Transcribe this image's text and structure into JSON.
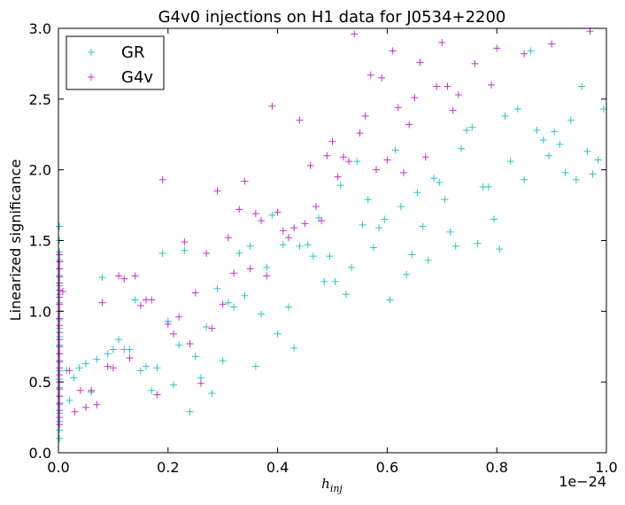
{
  "chart_data": {
    "type": "scatter",
    "title": "G4v0 injections on H1 data for J0534+2200",
    "xlabel": "h",
    "xlabel_sub": "inj",
    "ylabel": "Linearized significance",
    "x_offset_text": "1e−24",
    "xlim": [
      0.0,
      1.0
    ],
    "ylim": [
      0.0,
      3.0
    ],
    "x_ticks": [
      "0.0",
      "0.2",
      "0.4",
      "0.6",
      "0.8",
      "1.0"
    ],
    "y_ticks": [
      "0.0",
      "0.5",
      "1.0",
      "1.5",
      "2.0",
      "2.5",
      "3.0"
    ],
    "legend_position": "top-left",
    "series": [
      {
        "name": "GR",
        "color": "#29c6c6",
        "marker": "+",
        "points": [
          [
            0.015,
            0.58
          ],
          [
            0.02,
            0.37
          ],
          [
            0.028,
            0.53
          ],
          [
            0.038,
            0.6
          ],
          [
            0.05,
            0.63
          ],
          [
            0.06,
            0.43
          ],
          [
            0.07,
            0.66
          ],
          [
            0.08,
            1.24
          ],
          [
            0.09,
            0.7
          ],
          [
            0.1,
            0.73
          ],
          [
            0.11,
            0.8
          ],
          [
            0.12,
            0.73
          ],
          [
            0.13,
            0.73
          ],
          [
            0.14,
            1.08
          ],
          [
            0.15,
            0.58
          ],
          [
            0.16,
            0.61
          ],
          [
            0.17,
            0.44
          ],
          [
            0.18,
            0.6
          ],
          [
            0.19,
            1.41
          ],
          [
            0.2,
            0.93
          ],
          [
            0.21,
            0.48
          ],
          [
            0.22,
            0.76
          ],
          [
            0.23,
            1.43
          ],
          [
            0.24,
            0.29
          ],
          [
            0.25,
            0.68
          ],
          [
            0.26,
            0.53
          ],
          [
            0.27,
            0.89
          ],
          [
            0.28,
            0.42
          ],
          [
            0.29,
            1.16
          ],
          [
            0.3,
            0.65
          ],
          [
            0.31,
            1.06
          ],
          [
            0.32,
            1.03
          ],
          [
            0.33,
            1.41
          ],
          [
            0.34,
            1.11
          ],
          [
            0.35,
            1.46
          ],
          [
            0.36,
            0.61
          ],
          [
            0.37,
            0.98
          ],
          [
            0.38,
            1.31
          ],
          [
            0.39,
            1.68
          ],
          [
            0.4,
            0.84
          ],
          [
            0.41,
            1.47
          ],
          [
            0.42,
            1.03
          ],
          [
            0.43,
            0.74
          ],
          [
            0.44,
            1.46
          ],
          [
            0.455,
            1.47
          ],
          [
            0.465,
            1.39
          ],
          [
            0.475,
            1.66
          ],
          [
            0.485,
            1.21
          ],
          [
            0.495,
            1.39
          ],
          [
            0.505,
            1.21
          ],
          [
            0.515,
            1.89
          ],
          [
            0.525,
            1.12
          ],
          [
            0.535,
            1.31
          ],
          [
            0.545,
            2.06
          ],
          [
            0.555,
            1.61
          ],
          [
            0.565,
            1.79
          ],
          [
            0.575,
            1.45
          ],
          [
            0.585,
            1.59
          ],
          [
            0.595,
            1.65
          ],
          [
            0.605,
            1.08
          ],
          [
            0.615,
            2.14
          ],
          [
            0.625,
            1.74
          ],
          [
            0.635,
            1.26
          ],
          [
            0.645,
            1.4
          ],
          [
            0.655,
            1.84
          ],
          [
            0.665,
            1.6
          ],
          [
            0.675,
            1.36
          ],
          [
            0.685,
            1.94
          ],
          [
            0.695,
            1.91
          ],
          [
            0.705,
            1.79
          ],
          [
            0.715,
            1.56
          ],
          [
            0.725,
            1.46
          ],
          [
            0.735,
            2.15
          ],
          [
            0.745,
            2.28
          ],
          [
            0.755,
            2.3
          ],
          [
            0.765,
            1.48
          ],
          [
            0.775,
            1.88
          ],
          [
            0.785,
            1.88
          ],
          [
            0.795,
            1.65
          ],
          [
            0.805,
            1.44
          ],
          [
            0.815,
            2.38
          ],
          [
            0.825,
            2.06
          ],
          [
            0.838,
            2.43
          ],
          [
            0.85,
            1.93
          ],
          [
            0.862,
            2.84
          ],
          [
            0.873,
            2.28
          ],
          [
            0.885,
            2.21
          ],
          [
            0.895,
            2.1
          ],
          [
            0.905,
            2.27
          ],
          [
            0.915,
            2.18
          ],
          [
            0.925,
            1.98
          ],
          [
            0.935,
            2.35
          ],
          [
            0.945,
            1.93
          ],
          [
            0.955,
            2.59
          ],
          [
            0.965,
            2.13
          ],
          [
            0.975,
            1.97
          ],
          [
            0.985,
            2.07
          ],
          [
            0.995,
            2.43
          ],
          [
            0.002,
            0.1
          ],
          [
            0.002,
            0.16
          ],
          [
            0.002,
            0.22
          ],
          [
            0.002,
            0.28
          ],
          [
            0.002,
            0.34
          ],
          [
            0.002,
            0.4
          ],
          [
            0.002,
            0.46
          ],
          [
            0.002,
            0.52
          ],
          [
            0.002,
            0.58
          ],
          [
            0.002,
            0.64
          ],
          [
            0.002,
            0.7
          ],
          [
            0.002,
            0.76
          ],
          [
            0.002,
            0.82
          ],
          [
            0.002,
            0.88
          ],
          [
            0.002,
            0.94
          ],
          [
            0.002,
            1.0
          ],
          [
            0.002,
            1.06
          ],
          [
            0.002,
            1.12
          ],
          [
            0.002,
            1.18
          ],
          [
            0.002,
            1.24
          ],
          [
            0.002,
            1.3
          ],
          [
            0.002,
            1.36
          ],
          [
            0.002,
            1.42
          ],
          [
            0.002,
            1.5
          ],
          [
            0.002,
            1.6
          ]
        ]
      },
      {
        "name": "G4v",
        "color": "#c532c5",
        "marker": "+",
        "points": [
          [
            0.008,
            1.14
          ],
          [
            0.02,
            0.58
          ],
          [
            0.03,
            0.29
          ],
          [
            0.04,
            0.44
          ],
          [
            0.05,
            0.32
          ],
          [
            0.06,
            0.44
          ],
          [
            0.07,
            0.34
          ],
          [
            0.08,
            1.06
          ],
          [
            0.09,
            0.61
          ],
          [
            0.1,
            0.6
          ],
          [
            0.11,
            1.25
          ],
          [
            0.12,
            1.23
          ],
          [
            0.13,
            0.67
          ],
          [
            0.14,
            1.25
          ],
          [
            0.15,
            1.04
          ],
          [
            0.16,
            1.08
          ],
          [
            0.17,
            1.08
          ],
          [
            0.18,
            0.41
          ],
          [
            0.19,
            1.93
          ],
          [
            0.2,
            0.91
          ],
          [
            0.21,
            0.84
          ],
          [
            0.22,
            0.96
          ],
          [
            0.23,
            1.49
          ],
          [
            0.24,
            0.77
          ],
          [
            0.25,
            1.13
          ],
          [
            0.26,
            0.49
          ],
          [
            0.27,
            1.41
          ],
          [
            0.28,
            0.88
          ],
          [
            0.29,
            1.85
          ],
          [
            0.3,
            1.05
          ],
          [
            0.31,
            1.52
          ],
          [
            0.32,
            1.27
          ],
          [
            0.33,
            1.72
          ],
          [
            0.34,
            1.92
          ],
          [
            0.35,
            1.3
          ],
          [
            0.36,
            1.69
          ],
          [
            0.37,
            1.64
          ],
          [
            0.38,
            1.25
          ],
          [
            0.39,
            2.45
          ],
          [
            0.4,
            1.7
          ],
          [
            0.41,
            1.57
          ],
          [
            0.42,
            1.52
          ],
          [
            0.43,
            1.59
          ],
          [
            0.44,
            2.35
          ],
          [
            0.45,
            1.62
          ],
          [
            0.46,
            2.03
          ],
          [
            0.47,
            1.74
          ],
          [
            0.48,
            1.64
          ],
          [
            0.49,
            2.1
          ],
          [
            0.5,
            2.2
          ],
          [
            0.51,
            1.95
          ],
          [
            0.52,
            2.09
          ],
          [
            0.53,
            2.06
          ],
          [
            0.54,
            2.96
          ],
          [
            0.55,
            2.26
          ],
          [
            0.56,
            2.38
          ],
          [
            0.57,
            2.67
          ],
          [
            0.58,
            2.0
          ],
          [
            0.59,
            2.65
          ],
          [
            0.6,
            2.07
          ],
          [
            0.61,
            2.84
          ],
          [
            0.62,
            2.44
          ],
          [
            0.63,
            1.98
          ],
          [
            0.64,
            2.32
          ],
          [
            0.65,
            2.51
          ],
          [
            0.66,
            2.76
          ],
          [
            0.67,
            2.09
          ],
          [
            0.69,
            2.59
          ],
          [
            0.7,
            2.9
          ],
          [
            0.71,
            2.59
          ],
          [
            0.72,
            2.42
          ],
          [
            0.73,
            2.53
          ],
          [
            0.76,
            2.75
          ],
          [
            0.79,
            2.6
          ],
          [
            0.8,
            2.86
          ],
          [
            0.85,
            2.82
          ],
          [
            0.9,
            2.89
          ],
          [
            0.97,
            2.98
          ],
          [
            0.002,
            0.2
          ],
          [
            0.002,
            0.25
          ],
          [
            0.002,
            0.3
          ],
          [
            0.002,
            0.35
          ],
          [
            0.002,
            0.4
          ],
          [
            0.002,
            0.45
          ],
          [
            0.002,
            0.5
          ],
          [
            0.002,
            0.55
          ],
          [
            0.002,
            0.6
          ],
          [
            0.002,
            0.65
          ],
          [
            0.002,
            0.7
          ],
          [
            0.002,
            0.75
          ],
          [
            0.002,
            0.8
          ],
          [
            0.002,
            0.85
          ],
          [
            0.002,
            0.9
          ],
          [
            0.002,
            0.95
          ],
          [
            0.002,
            1.0
          ],
          [
            0.002,
            1.05
          ],
          [
            0.002,
            1.1
          ],
          [
            0.002,
            1.15
          ],
          [
            0.002,
            1.2
          ],
          [
            0.002,
            1.25
          ],
          [
            0.002,
            1.3
          ],
          [
            0.002,
            1.35
          ],
          [
            0.002,
            1.4
          ]
        ]
      }
    ]
  }
}
